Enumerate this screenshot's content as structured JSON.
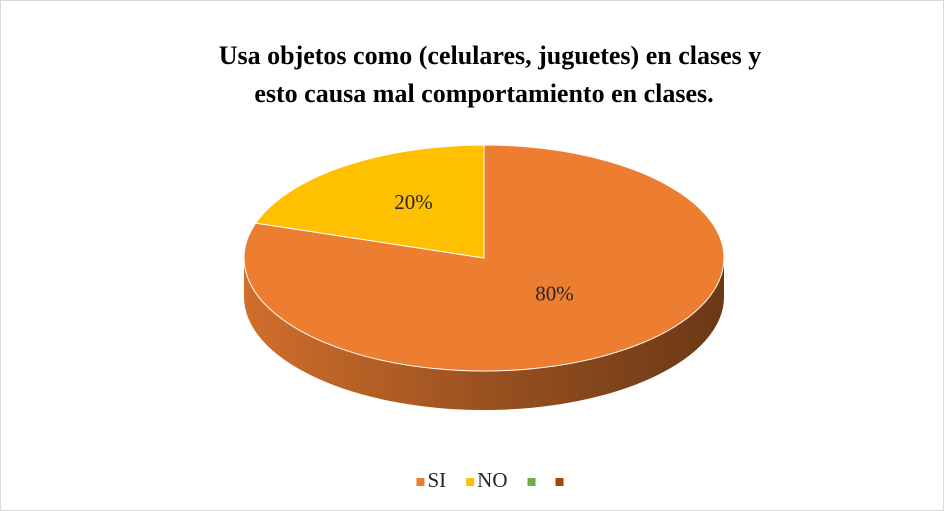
{
  "chart_data": {
    "type": "pie3d",
    "title": [
      "Usa objetos como (celulares, juguetes) en clases y",
      "esto causa mal comportamiento en clases."
    ],
    "categories": [
      "SI",
      "NO",
      null,
      null
    ],
    "values": [
      80,
      20,
      0,
      0
    ],
    "value_labels": [
      "80%",
      "20%",
      null,
      null
    ],
    "colors": [
      "#ED7D31",
      "#FFC000",
      "#70AD47",
      "#9E480E"
    ],
    "legend": "bottom"
  }
}
